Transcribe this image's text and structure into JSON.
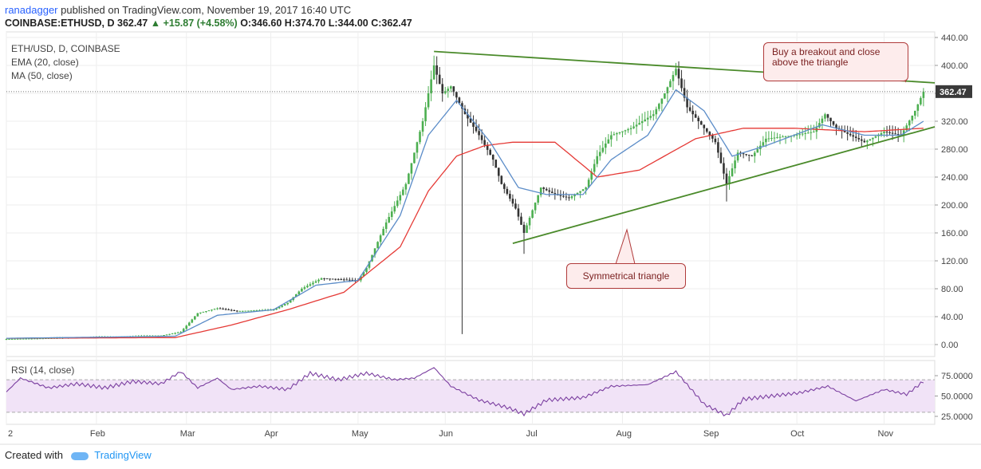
{
  "header": {
    "author": "ranadagger",
    "published_text": "published on TradingView.com, November 19, 2017 16:40 UTC",
    "symbol": "COINBASE:ETHUSD, D",
    "last": "362.47",
    "change": "+15.87 (+4.58%)",
    "open": "O:346.60",
    "high": "H:374.70",
    "low": "L:344.00",
    "close": "C:362.47"
  },
  "legend": {
    "title": "ETH/USD, D, COINBASE",
    "ema": "EMA (20, close)",
    "ma": "MA (50, close)",
    "rsi": "RSI (14, close)"
  },
  "annotations": {
    "breakout_line1": "Buy a breakout and close",
    "breakout_line2": "above the triangle",
    "triangle": "Symmetrical triangle"
  },
  "price_badge": "362.47",
  "footer": {
    "created_with": "Created with",
    "brand": "TradingView"
  },
  "colors": {
    "up": "#4caf50",
    "down": "#333333",
    "ema": "#5b8cc8",
    "ma": "#e53935",
    "trendline": "#4a8a2a",
    "rsi": "#7b3fa0",
    "rsi_band": "#f1e3f7",
    "grid": "#eeeeee"
  },
  "chart_data": [
    {
      "type": "candlestick",
      "title": "ETH/USD, D, COINBASE",
      "x_ticks": [
        "2",
        "Feb",
        "Mar",
        "Apr",
        "May",
        "Jun",
        "Jul",
        "Aug",
        "Sep",
        "Oct",
        "Nov"
      ],
      "y_ticks": [
        "440.00",
        "400.00",
        "360.00",
        "320.00",
        "280.00",
        "240.00",
        "200.00",
        "160.00",
        "120.00",
        "80.00",
        "40.00",
        "0.00"
      ],
      "ylim": [
        0,
        440
      ],
      "grid": true,
      "price_anchors": [
        {
          "t": 0,
          "p": 8
        },
        {
          "t": 25,
          "p": 10
        },
        {
          "t": 55,
          "p": 13
        },
        {
          "t": 62,
          "p": 18
        },
        {
          "t": 68,
          "p": 45
        },
        {
          "t": 75,
          "p": 52
        },
        {
          "t": 82,
          "p": 48
        },
        {
          "t": 95,
          "p": 50
        },
        {
          "t": 100,
          "p": 60
        },
        {
          "t": 105,
          "p": 80
        },
        {
          "t": 112,
          "p": 95
        },
        {
          "t": 125,
          "p": 92
        },
        {
          "t": 128,
          "p": 110
        },
        {
          "t": 135,
          "p": 175
        },
        {
          "t": 142,
          "p": 230
        },
        {
          "t": 148,
          "p": 320
        },
        {
          "t": 152,
          "p": 400
        },
        {
          "t": 155,
          "p": 360
        },
        {
          "t": 158,
          "p": 370
        },
        {
          "t": 163,
          "p": 330
        },
        {
          "t": 168,
          "p": 300
        },
        {
          "t": 173,
          "p": 265
        },
        {
          "t": 176,
          "p": 230
        },
        {
          "t": 181,
          "p": 195
        },
        {
          "t": 184,
          "p": 160
        },
        {
          "t": 190,
          "p": 225
        },
        {
          "t": 195,
          "p": 215
        },
        {
          "t": 200,
          "p": 210
        },
        {
          "t": 206,
          "p": 225
        },
        {
          "t": 210,
          "p": 270
        },
        {
          "t": 215,
          "p": 300
        },
        {
          "t": 222,
          "p": 310
        },
        {
          "t": 230,
          "p": 330
        },
        {
          "t": 234,
          "p": 360
        },
        {
          "t": 238,
          "p": 395
        },
        {
          "t": 242,
          "p": 340
        },
        {
          "t": 248,
          "p": 310
        },
        {
          "t": 252,
          "p": 290
        },
        {
          "t": 256,
          "p": 230
        },
        {
          "t": 260,
          "p": 275
        },
        {
          "t": 265,
          "p": 270
        },
        {
          "t": 270,
          "p": 295
        },
        {
          "t": 280,
          "p": 300
        },
        {
          "t": 287,
          "p": 305
        },
        {
          "t": 291,
          "p": 330
        },
        {
          "t": 295,
          "p": 310
        },
        {
          "t": 300,
          "p": 300
        },
        {
          "t": 305,
          "p": 290
        },
        {
          "t": 312,
          "p": 305
        },
        {
          "t": 318,
          "p": 300
        },
        {
          "t": 323,
          "p": 335
        },
        {
          "t": 326,
          "p": 362.47
        }
      ],
      "extreme_wicks": [
        {
          "t": 162,
          "low": 15
        },
        {
          "t": 184,
          "low": 130
        },
        {
          "t": 256,
          "low": 205
        }
      ],
      "ema_anchors": [
        {
          "t": 0,
          "p": 9
        },
        {
          "t": 60,
          "p": 12
        },
        {
          "t": 75,
          "p": 42
        },
        {
          "t": 95,
          "p": 50
        },
        {
          "t": 110,
          "p": 85
        },
        {
          "t": 125,
          "p": 92
        },
        {
          "t": 140,
          "p": 185
        },
        {
          "t": 150,
          "p": 300
        },
        {
          "t": 160,
          "p": 350
        },
        {
          "t": 172,
          "p": 290
        },
        {
          "t": 182,
          "p": 225
        },
        {
          "t": 192,
          "p": 215
        },
        {
          "t": 205,
          "p": 215
        },
        {
          "t": 215,
          "p": 265
        },
        {
          "t": 228,
          "p": 300
        },
        {
          "t": 238,
          "p": 365
        },
        {
          "t": 248,
          "p": 335
        },
        {
          "t": 258,
          "p": 270
        },
        {
          "t": 270,
          "p": 285
        },
        {
          "t": 290,
          "p": 315
        },
        {
          "t": 305,
          "p": 300
        },
        {
          "t": 318,
          "p": 300
        },
        {
          "t": 326,
          "p": 320
        }
      ],
      "ma_anchors": [
        {
          "t": 0,
          "p": 9
        },
        {
          "t": 60,
          "p": 10
        },
        {
          "t": 80,
          "p": 28
        },
        {
          "t": 100,
          "p": 50
        },
        {
          "t": 120,
          "p": 75
        },
        {
          "t": 140,
          "p": 140
        },
        {
          "t": 150,
          "p": 220
        },
        {
          "t": 160,
          "p": 270
        },
        {
          "t": 170,
          "p": 285
        },
        {
          "t": 180,
          "p": 290
        },
        {
          "t": 195,
          "p": 290
        },
        {
          "t": 210,
          "p": 240
        },
        {
          "t": 225,
          "p": 250
        },
        {
          "t": 245,
          "p": 295
        },
        {
          "t": 262,
          "p": 310
        },
        {
          "t": 280,
          "p": 310
        },
        {
          "t": 305,
          "p": 305
        },
        {
          "t": 326,
          "p": 310
        }
      ],
      "trendlines": [
        {
          "name": "upper",
          "t1": 152,
          "p1": 420,
          "t2": 330,
          "p2": 375
        },
        {
          "name": "lower",
          "t1": 180,
          "p1": 145,
          "t2": 330,
          "p2": 312
        }
      ]
    },
    {
      "type": "line",
      "title": "RSI (14, close)",
      "y_ticks": [
        "75.0000",
        "50.0000",
        "25.0000"
      ],
      "ylim": [
        20,
        86
      ],
      "band": [
        30,
        70
      ],
      "rsi_anchors": [
        {
          "t": 0,
          "p": 55
        },
        {
          "t": 5,
          "p": 72
        },
        {
          "t": 15,
          "p": 60
        },
        {
          "t": 25,
          "p": 65
        },
        {
          "t": 35,
          "p": 60
        },
        {
          "t": 45,
          "p": 68
        },
        {
          "t": 55,
          "p": 65
        },
        {
          "t": 62,
          "p": 80
        },
        {
          "t": 68,
          "p": 60
        },
        {
          "t": 75,
          "p": 72
        },
        {
          "t": 80,
          "p": 58
        },
        {
          "t": 90,
          "p": 62
        },
        {
          "t": 100,
          "p": 58
        },
        {
          "t": 108,
          "p": 78
        },
        {
          "t": 118,
          "p": 70
        },
        {
          "t": 128,
          "p": 78
        },
        {
          "t": 138,
          "p": 70
        },
        {
          "t": 145,
          "p": 72
        },
        {
          "t": 152,
          "p": 85
        },
        {
          "t": 158,
          "p": 62
        },
        {
          "t": 168,
          "p": 45
        },
        {
          "t": 178,
          "p": 36
        },
        {
          "t": 184,
          "p": 28
        },
        {
          "t": 192,
          "p": 45
        },
        {
          "t": 205,
          "p": 48
        },
        {
          "t": 215,
          "p": 62
        },
        {
          "t": 228,
          "p": 64
        },
        {
          "t": 238,
          "p": 80
        },
        {
          "t": 248,
          "p": 40
        },
        {
          "t": 256,
          "p": 26
        },
        {
          "t": 262,
          "p": 46
        },
        {
          "t": 272,
          "p": 50
        },
        {
          "t": 282,
          "p": 54
        },
        {
          "t": 292,
          "p": 62
        },
        {
          "t": 302,
          "p": 44
        },
        {
          "t": 312,
          "p": 58
        },
        {
          "t": 320,
          "p": 52
        },
        {
          "t": 326,
          "p": 68
        }
      ]
    }
  ]
}
